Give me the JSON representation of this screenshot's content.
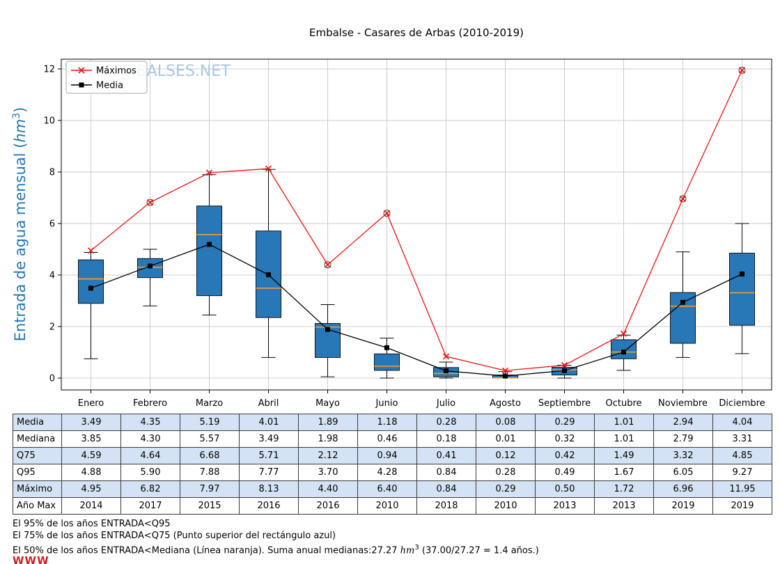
{
  "watermark": "WWW.EMBALSES.NET",
  "logo_text": "WWW",
  "chart_data": {
    "type": "boxplot",
    "title": "Embalse - Casares de Arbas (2010-2019)",
    "ylabel_parts": {
      "pre": "Entrada de agua mensual (",
      "math": "hm",
      "sup": "3",
      "post": ")"
    },
    "ylabel_color": "#1f77b4",
    "ylim": [
      -0.46,
      12.43
    ],
    "yticks": [
      0,
      2,
      4,
      6,
      8,
      10,
      12
    ],
    "grid": true,
    "legend_position": "upper-left",
    "categories": [
      "Enero",
      "Febrero",
      "Marzo",
      "Abril",
      "Mayo",
      "Junio",
      "Julio",
      "Agosto",
      "Septiembre",
      "Octubre",
      "Noviembre",
      "Diciembre"
    ],
    "series": [
      {
        "name": "Máximos",
        "color": "#ee1111",
        "marker": "x",
        "values": [
          4.95,
          6.82,
          7.97,
          8.13,
          4.4,
          6.4,
          0.84,
          0.29,
          0.5,
          1.72,
          6.96,
          11.95
        ]
      },
      {
        "name": "Media",
        "color": "#000000",
        "marker": "square",
        "values": [
          3.49,
          4.35,
          5.19,
          4.01,
          1.89,
          1.18,
          0.28,
          0.08,
          0.29,
          1.01,
          2.94,
          4.04
        ]
      }
    ],
    "boxplot": {
      "box_color": "#2878b8",
      "median_color": "#e8973a",
      "median": [
        3.85,
        4.3,
        5.57,
        3.49,
        1.98,
        0.46,
        0.18,
        0.01,
        0.32,
        1.01,
        2.79,
        3.31
      ],
      "q1": [
        2.9,
        3.9,
        3.2,
        2.35,
        0.8,
        0.3,
        0.05,
        0.0,
        0.12,
        0.75,
        1.35,
        2.05
      ],
      "q3": [
        4.59,
        4.64,
        6.68,
        5.71,
        2.12,
        0.94,
        0.41,
        0.12,
        0.42,
        1.49,
        3.32,
        4.85
      ],
      "whisker_low": [
        0.75,
        2.8,
        2.45,
        0.8,
        0.05,
        0.0,
        0.0,
        0.0,
        0.0,
        0.3,
        0.8,
        0.95
      ],
      "whisker_high": [
        4.88,
        5.0,
        7.9,
        8.1,
        2.85,
        1.55,
        0.62,
        0.25,
        0.5,
        1.67,
        4.9,
        6.0
      ],
      "fliers": [
        null,
        6.82,
        null,
        null,
        4.4,
        6.4,
        null,
        null,
        null,
        null,
        6.96,
        11.95
      ]
    }
  },
  "table": {
    "row_labels": [
      "Media",
      "Mediana",
      "Q75",
      "Q95",
      "Máximo",
      "Año Max"
    ],
    "rows": [
      [
        "3.49",
        "4.35",
        "5.19",
        "4.01",
        "1.89",
        "1.18",
        "0.28",
        "0.08",
        "0.29",
        "1.01",
        "2.94",
        "4.04"
      ],
      [
        "3.85",
        "4.30",
        "5.57",
        "3.49",
        "1.98",
        "0.46",
        "0.18",
        "0.01",
        "0.32",
        "1.01",
        "2.79",
        "3.31"
      ],
      [
        "4.59",
        "4.64",
        "6.68",
        "5.71",
        "2.12",
        "0.94",
        "0.41",
        "0.12",
        "0.42",
        "1.49",
        "3.32",
        "4.85"
      ],
      [
        "4.88",
        "5.90",
        "7.88",
        "7.77",
        "3.70",
        "4.28",
        "0.84",
        "0.28",
        "0.49",
        "1.67",
        "6.05",
        "9.27"
      ],
      [
        "4.95",
        "6.82",
        "7.97",
        "8.13",
        "4.40",
        "6.40",
        "0.84",
        "0.29",
        "0.50",
        "1.72",
        "6.96",
        "11.95"
      ],
      [
        "2014",
        "2017",
        "2015",
        "2016",
        "2016",
        "2010",
        "2018",
        "2010",
        "2013",
        "2013",
        "2019",
        "2019"
      ]
    ],
    "shaded_row_color": "#d3e3f5"
  },
  "footer": {
    "line1": "El 95% de los años ENTRADA<Q95",
    "line2": "El 75% de los años ENTRADA<Q75 (Punto superior del rectángulo azul)",
    "line3_pre": "El 50% de los años ENTRADA<Mediana (Línea naranja). Suma anual medianas:27.27 ",
    "line3_math": "hm",
    "line3_sup": "3",
    "line3_post": " (37.00/27.27 = 1.4 años.)"
  }
}
